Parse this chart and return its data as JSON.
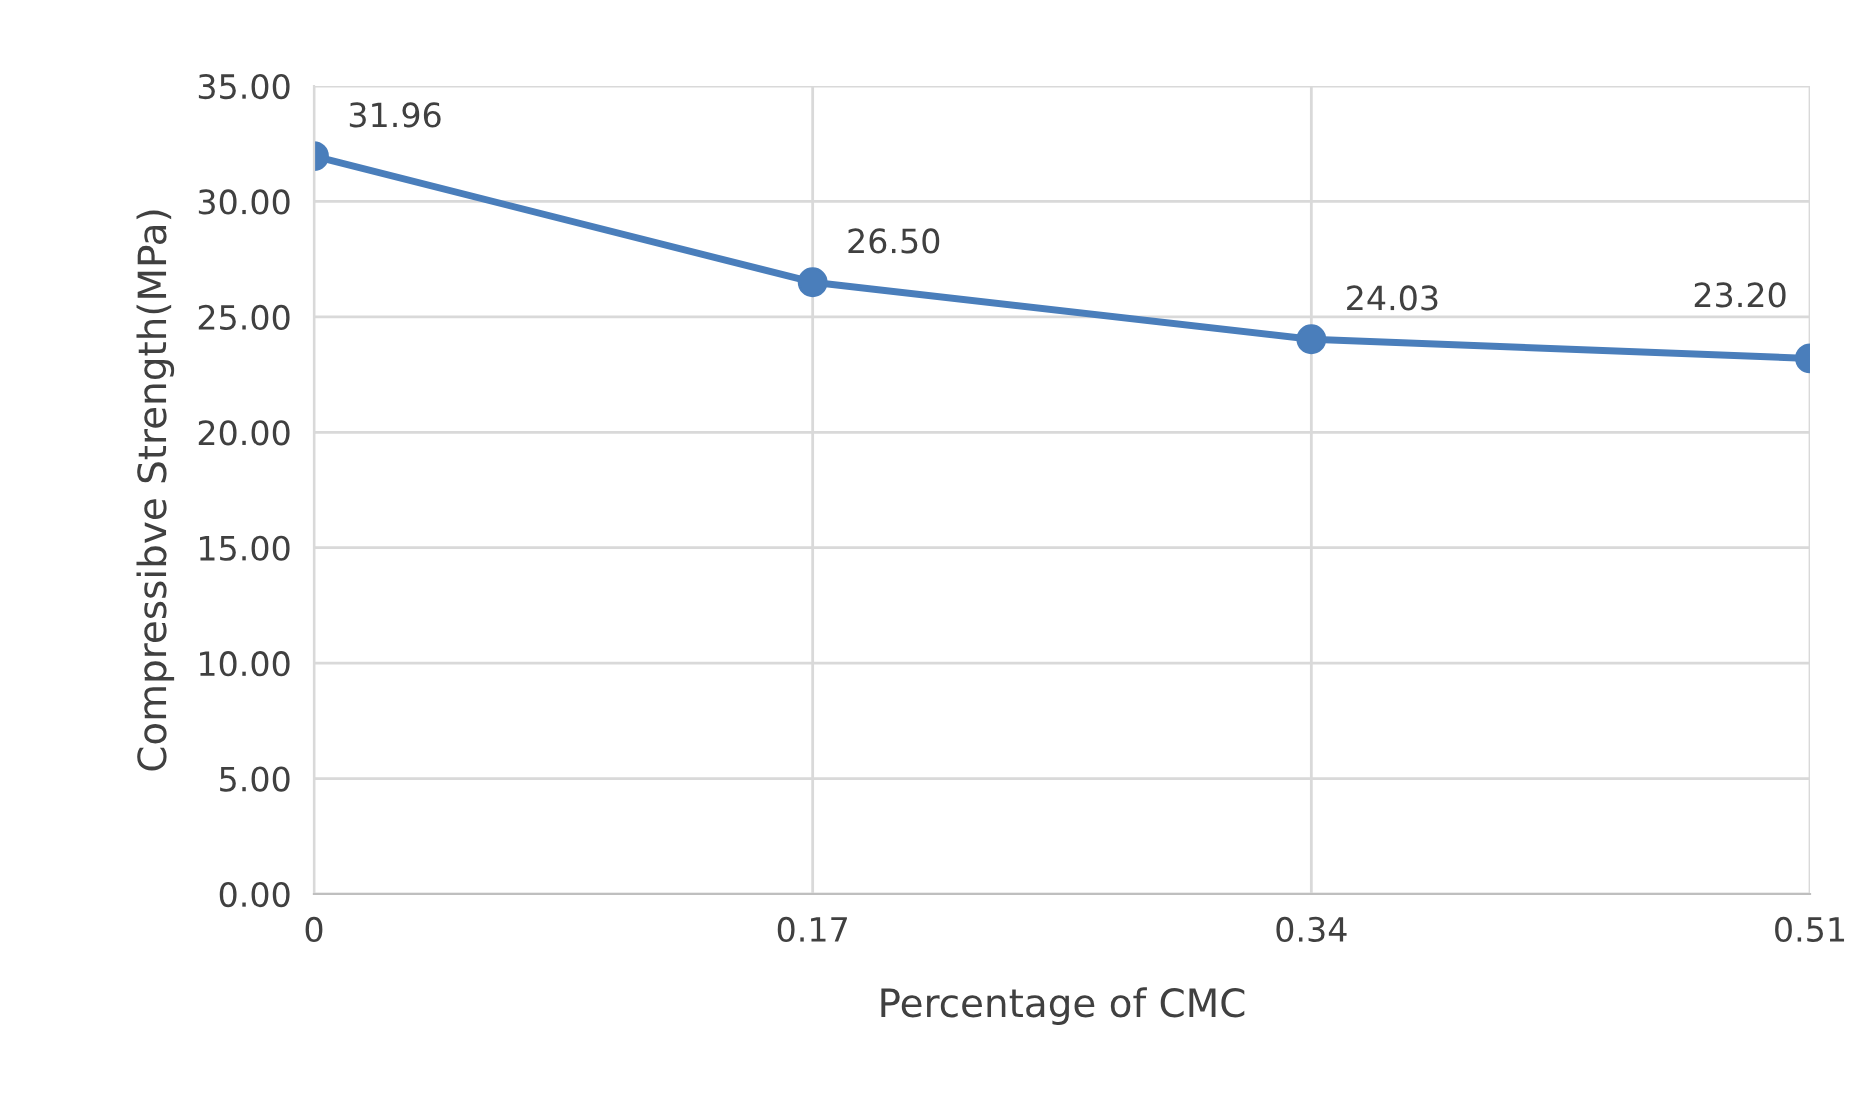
{
  "chart_data": {
    "type": "line",
    "xlabel": "Percentage of CMC",
    "ylabel": "Compressibve Strength(MPa)",
    "x": [
      0,
      0.17,
      0.34,
      0.51
    ],
    "series": [
      {
        "color": "#4a7ebb",
        "values": [
          31.96,
          26.5,
          24.03,
          23.2
        ],
        "value_labels": [
          "31.96",
          "26.50",
          "24.03",
          "23.20"
        ]
      }
    ],
    "xlim": [
      0,
      0.51
    ],
    "xticks": [
      0,
      0.17,
      0.34,
      0.51
    ],
    "ylim": [
      0,
      35
    ],
    "yticks": [
      {
        "value": 0,
        "label": "0.00"
      },
      {
        "value": 5,
        "label": "5.00"
      },
      {
        "value": 10,
        "label": "10.00"
      },
      {
        "value": 15,
        "label": "15.00"
      },
      {
        "value": 20,
        "label": "20.00"
      },
      {
        "value": 25,
        "label": "25.00"
      },
      {
        "value": 30,
        "label": "30.00"
      },
      {
        "value": 35,
        "label": "35.00"
      }
    ],
    "grid": true,
    "marker": "circle",
    "line_style": "solid"
  }
}
